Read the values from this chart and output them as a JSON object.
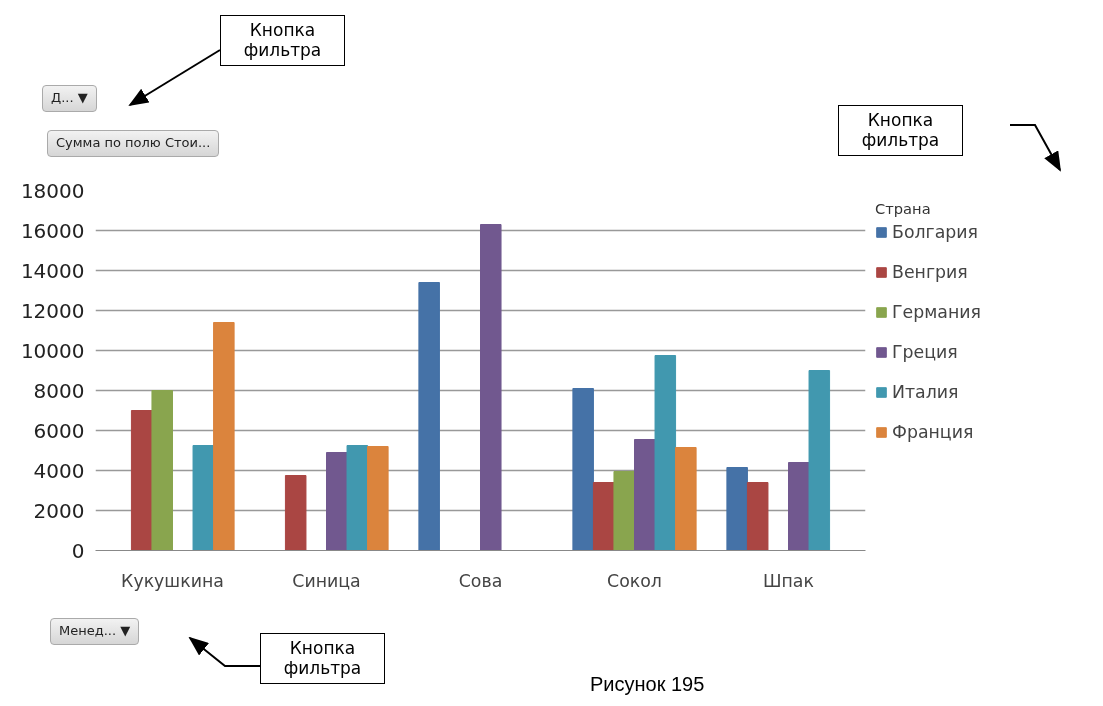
{
  "chart_data": {
    "type": "bar",
    "categories": [
      "Кукушкина",
      "Синица",
      "Сова",
      "Сокол",
      "Шпак"
    ],
    "legend_title": "Страна",
    "series": [
      {
        "name": "Болгария",
        "color": "#4572a7",
        "values": [
          null,
          null,
          13400,
          8100,
          4150
        ]
      },
      {
        "name": "Венгрия",
        "color": "#aa4643",
        "values": [
          7000,
          3750,
          null,
          3400,
          3400
        ]
      },
      {
        "name": "Германия",
        "color": "#89a54e",
        "values": [
          8000,
          null,
          null,
          3950,
          null
        ]
      },
      {
        "name": "Греция",
        "color": "#71588f",
        "values": [
          null,
          4900,
          16300,
          5550,
          4400
        ]
      },
      {
        "name": "Италия",
        "color": "#4198af",
        "values": [
          5250,
          5250,
          null,
          9750,
          9000
        ]
      },
      {
        "name": "Франция",
        "color": "#db843d",
        "values": [
          11400,
          5200,
          null,
          5150,
          null
        ]
      }
    ],
    "ylim": [
      0,
      18000
    ],
    "yticks": [
      0,
      2000,
      4000,
      6000,
      8000,
      10000,
      12000,
      14000,
      16000,
      18000
    ],
    "grid": "y",
    "legend": "right",
    "annotations": [
      "Кнопка фильтра",
      "Д... ▼",
      "Сумма по полю Стои...",
      "Кнопка фильтра",
      "Менед... ▼",
      "Кнопка фильтра",
      "Рисунок 195"
    ]
  }
}
